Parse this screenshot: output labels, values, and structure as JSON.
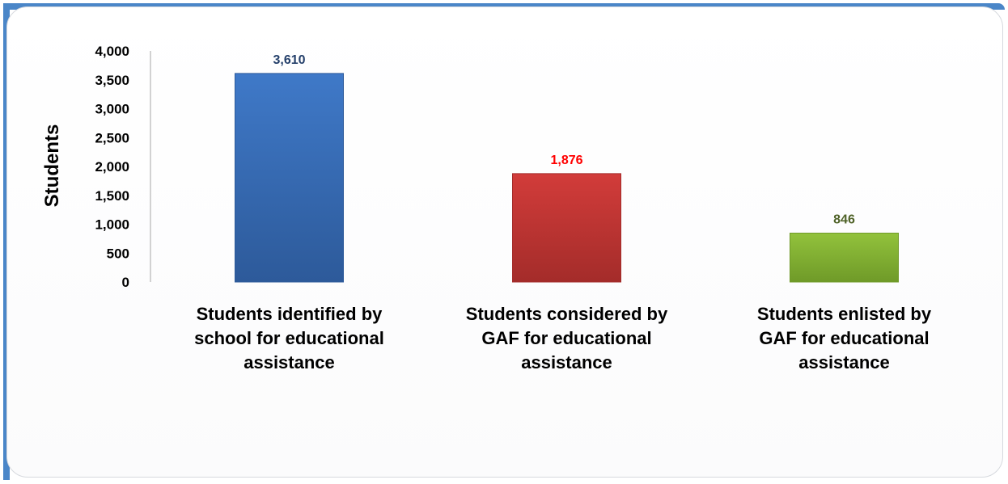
{
  "chart_data": {
    "type": "bar",
    "title": "",
    "xlabel": "",
    "ylabel": "Students",
    "ylim": [
      0,
      4000
    ],
    "yticks": [
      0,
      500,
      1000,
      1500,
      2000,
      2500,
      3000,
      3500,
      4000
    ],
    "ytick_labels": [
      "0",
      "500",
      "1,000",
      "1,500",
      "2,000",
      "2,500",
      "3,000",
      "3,500",
      "4,000"
    ],
    "grid": false,
    "legend": "none",
    "categories": [
      [
        "Students identified by",
        "school for educational",
        "assistance"
      ],
      [
        "Students considered by",
        "GAF for educational",
        "assistance"
      ],
      [
        "Students enlisted by",
        "GAF for educational",
        "assistance"
      ]
    ],
    "values": [
      3610,
      1876,
      846
    ],
    "data_labels": [
      "3,610",
      "1,876",
      "846"
    ],
    "bar_colors": [
      "#3f79c8",
      "#d23c3a",
      "#92c23c"
    ],
    "bar_colors_dark": [
      "#2d5a9a",
      "#a42c2a",
      "#6f9a28"
    ],
    "label_colors": [
      "#243f6a",
      "#ff0000",
      "#4f6228"
    ]
  }
}
